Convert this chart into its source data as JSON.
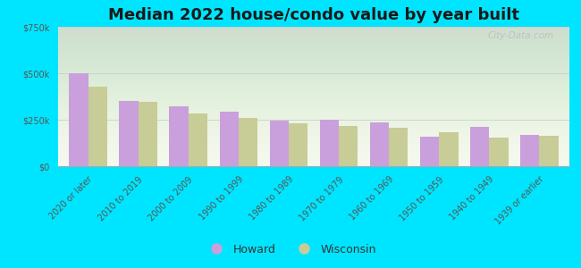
{
  "title": "Median 2022 house/condo value by year built",
  "categories": [
    "2020 or later",
    "2010 to 2019",
    "2000 to 2009",
    "1990 to 1999",
    "1980 to 1989",
    "1970 to 1979",
    "1960 to 1969",
    "1950 to 1959",
    "1940 to 1949",
    "1939 or earlier"
  ],
  "howard_values": [
    500000,
    350000,
    320000,
    295000,
    245000,
    250000,
    235000,
    160000,
    210000,
    170000
  ],
  "wisconsin_values": [
    430000,
    345000,
    285000,
    260000,
    230000,
    215000,
    205000,
    185000,
    155000,
    165000
  ],
  "howard_color": "#c9a0dc",
  "wisconsin_color": "#c8cc96",
  "background_outer": "#00e5ff",
  "background_plot_top": "#f5f8ee",
  "background_plot_bottom": "#dceedd",
  "ylim": [
    0,
    750000
  ],
  "yticks": [
    0,
    250000,
    500000,
    750000
  ],
  "ytick_labels": [
    "$0",
    "$250k",
    "$500k",
    "$750k"
  ],
  "legend_labels": [
    "Howard",
    "Wisconsin"
  ],
  "watermark": "City-Data.com",
  "title_fontsize": 13,
  "tick_fontsize": 7.0,
  "legend_fontsize": 9
}
